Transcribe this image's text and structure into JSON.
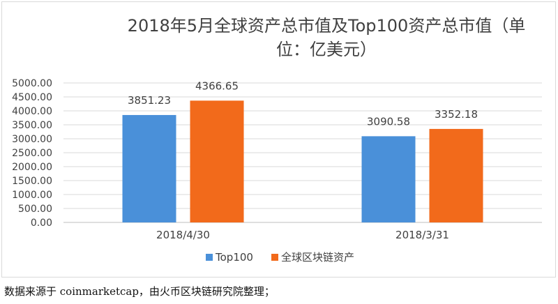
{
  "chart_data": {
    "type": "bar",
    "title_line1": "2018年5月全球资产总市值及Top100资产总市值（单",
    "title_line2": "位：亿美元）",
    "categories": [
      "2018/4/30",
      "2018/3/31"
    ],
    "series": [
      {
        "name": "Top100",
        "values": [
          3851.23,
          3090.58
        ],
        "color": "#4a90d9"
      },
      {
        "name": "全球区块链资产",
        "values": [
          4366.65,
          3352.18
        ],
        "color": "#f26a1b"
      }
    ],
    "ylim": [
      0,
      5000
    ],
    "yticks": [
      "0.00",
      "500.00",
      "1000.00",
      "1500.00",
      "2000.00",
      "2500.00",
      "3000.00",
      "3500.00",
      "4000.00",
      "4500.00",
      "5000.00"
    ],
    "data_labels": [
      [
        "3851.23",
        "3090.58"
      ],
      [
        "4366.65",
        "3352.18"
      ]
    ],
    "grid": true,
    "legend_position": "bottom"
  },
  "source_note": "数据来源于 coinmarketcap，由火币区块链研究院整理；"
}
